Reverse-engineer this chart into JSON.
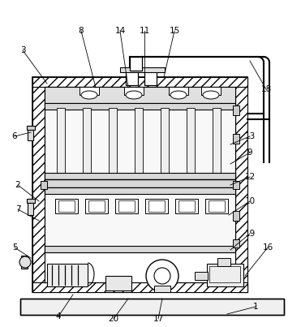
{
  "background": "#ffffff",
  "fig_width": 3.71,
  "fig_height": 4.03,
  "dpi": 100,
  "annotations": [
    [
      "1",
      315,
      378,
      280,
      387
    ],
    [
      "2",
      22,
      228,
      48,
      248
    ],
    [
      "3",
      28,
      62,
      58,
      103
    ],
    [
      "4",
      72,
      390,
      90,
      363
    ],
    [
      "5",
      18,
      305,
      38,
      318
    ],
    [
      "6",
      18,
      168,
      38,
      163
    ],
    [
      "7",
      22,
      258,
      48,
      272
    ],
    [
      "8",
      100,
      38,
      118,
      108
    ],
    [
      "9",
      308,
      188,
      284,
      202
    ],
    [
      "10",
      308,
      248,
      282,
      265
    ],
    [
      "11",
      178,
      38,
      178,
      95
    ],
    [
      "12",
      308,
      218,
      284,
      228
    ],
    [
      "13",
      308,
      168,
      284,
      178
    ],
    [
      "14",
      148,
      38,
      158,
      108
    ],
    [
      "15",
      215,
      38,
      202,
      95
    ],
    [
      "16",
      330,
      305,
      302,
      340
    ],
    [
      "17",
      195,
      393,
      200,
      368
    ],
    [
      "18",
      328,
      110,
      308,
      75
    ],
    [
      "19",
      308,
      288,
      284,
      308
    ],
    [
      "20",
      140,
      393,
      158,
      368
    ]
  ]
}
